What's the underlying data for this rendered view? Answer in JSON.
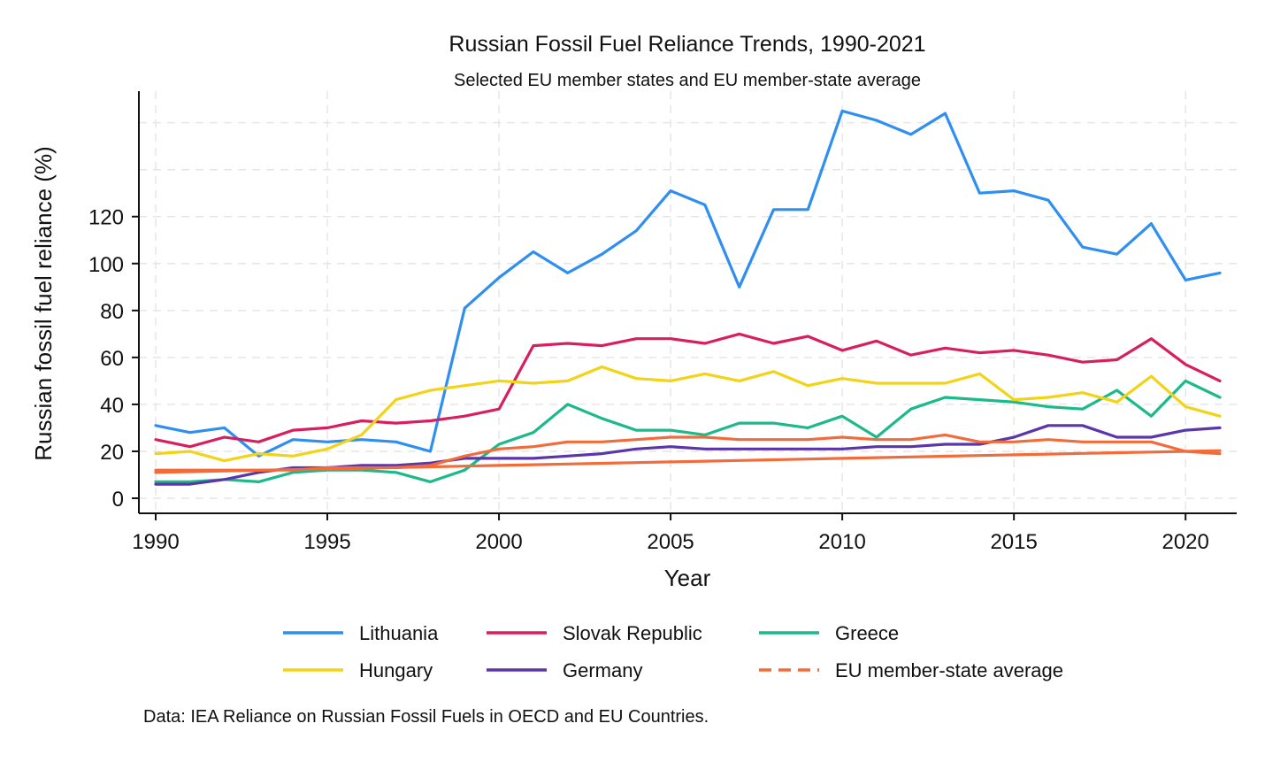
{
  "chart_data": {
    "type": "line",
    "title": "Russian Fossil Fuel Reliance Trends, 1990-2021",
    "subtitle": "Selected EU member states and EU member-state average",
    "xlabel": "Year",
    "ylabel": "Russian fossil fuel reliance (%)",
    "xlim": [
      1990,
      2021
    ],
    "ylim": [
      -6,
      172
    ],
    "xticks": [
      1990,
      1995,
      2000,
      2005,
      2010,
      2015,
      2020
    ],
    "yticks": [
      0,
      20,
      40,
      60,
      80,
      100,
      120
    ],
    "grid": true,
    "legend_position": "bottom",
    "note": "Data: IEA Reliance on Russian Fossil Fuels in OECD and EU Countries.",
    "x": [
      1990,
      1991,
      1992,
      1993,
      1994,
      1995,
      1996,
      1997,
      1998,
      1999,
      2000,
      2001,
      2002,
      2003,
      2004,
      2005,
      2006,
      2007,
      2008,
      2009,
      2010,
      2011,
      2012,
      2013,
      2014,
      2015,
      2016,
      2017,
      2018,
      2019,
      2020,
      2021
    ],
    "series": [
      {
        "name": "Lithuania",
        "color": "#2f8ff0",
        "dash": false,
        "values": [
          31,
          28,
          30,
          18,
          25,
          24,
          25,
          24,
          20,
          81,
          94,
          105,
          96,
          104,
          114,
          131,
          125,
          90,
          123,
          123,
          165,
          161,
          155,
          164,
          130,
          131,
          127,
          107,
          104,
          117,
          93,
          96
        ]
      },
      {
        "name": "Slovak Republic",
        "color": "#d81f5e",
        "dash": false,
        "values": [
          25,
          22,
          26,
          24,
          29,
          30,
          33,
          32,
          33,
          35,
          38,
          65,
          66,
          65,
          68,
          68,
          66,
          70,
          66,
          69,
          63,
          67,
          61,
          64,
          62,
          63,
          61,
          58,
          59,
          68,
          57,
          50
        ]
      },
      {
        "name": "Greece",
        "color": "#1cb98a",
        "dash": false,
        "values": [
          7,
          7,
          8,
          7,
          11,
          12,
          12,
          11,
          7,
          12,
          23,
          28,
          40,
          34,
          29,
          29,
          27,
          32,
          32,
          30,
          35,
          26,
          38,
          43,
          42,
          41,
          39,
          38,
          46,
          35,
          50,
          43
        ]
      },
      {
        "name": "Hungary",
        "color": "#f2d316",
        "dash": false,
        "values": [
          19,
          20,
          16,
          19,
          18,
          21,
          27,
          42,
          46,
          48,
          50,
          49,
          50,
          56,
          51,
          50,
          53,
          50,
          54,
          48,
          51,
          49,
          49,
          49,
          53,
          42,
          43,
          45,
          41,
          52,
          39,
          35
        ]
      },
      {
        "name": "Germany",
        "color": "#5a36a8",
        "dash": false,
        "values": [
          6,
          6,
          8,
          11,
          13,
          13,
          14,
          14,
          15,
          17,
          17,
          17,
          18,
          19,
          21,
          22,
          21,
          21,
          21,
          21,
          21,
          22,
          22,
          23,
          23,
          26,
          31,
          31,
          26,
          26,
          29,
          30
        ]
      },
      {
        "name": "EU member-state average",
        "color": "#f26b3a",
        "dash": true,
        "values": [
          12,
          12,
          12,
          12,
          12,
          13,
          13,
          13,
          14,
          18,
          21,
          22,
          24,
          24,
          25,
          26,
          26,
          25,
          25,
          25,
          26,
          25,
          25,
          27,
          24,
          24,
          25,
          24,
          24,
          24,
          20,
          19
        ]
      },
      {
        "name": "",
        "color": "#f26b3a",
        "dash": false,
        "values": [
          11,
          11.3,
          11.6,
          11.9,
          12.2,
          12.5,
          12.8,
          13.1,
          13.4,
          13.7,
          14,
          14.3,
          14.6,
          14.9,
          15.2,
          15.5,
          15.8,
          16.1,
          16.4,
          16.7,
          17,
          17.3,
          17.6,
          17.9,
          18.2,
          18.5,
          18.8,
          19.1,
          19.4,
          19.7,
          20,
          20.3
        ]
      }
    ]
  }
}
